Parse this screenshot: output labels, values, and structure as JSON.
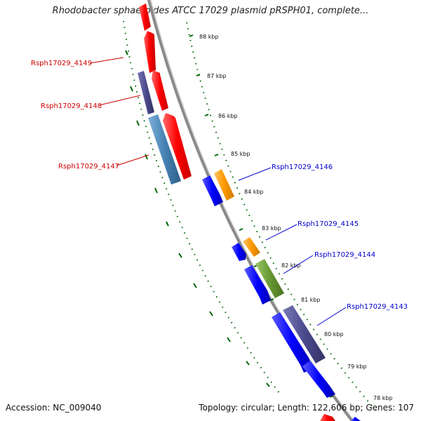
{
  "title": "Rhodobacter sphaeroides ATCC 17029 plasmid pRSPH01, complete...",
  "footer": {
    "accession": "Accession: NC_009040",
    "topology": "Topology: circular; Length: 122,606 bp; Genes: 107"
  },
  "colors": {
    "backbone": "#8a8a8a",
    "ticks": "#006600",
    "red": "#ff0000",
    "blue": "#0000ff",
    "orange": "#ff9900",
    "olive": "#669933",
    "purple": "#4b4a8c",
    "steel": "#4682b4",
    "label_red": "#cc0000",
    "label_blue": "#0000cc"
  },
  "scale_labels": [
    {
      "text": "88 kbp"
    },
    {
      "text": "87 kbp"
    },
    {
      "text": "86 kbp"
    },
    {
      "text": "85 kbp"
    },
    {
      "text": "84 kbp"
    },
    {
      "text": "83 kbp"
    },
    {
      "text": "82 kbp"
    },
    {
      "text": "81 kbp"
    },
    {
      "text": "80 kbp"
    },
    {
      "text": "79 kbp"
    },
    {
      "text": "78 kbp"
    }
  ],
  "gene_labels": [
    {
      "text": "Rsph17029_4149",
      "color": "#cc0000"
    },
    {
      "text": "Rsph17029_4148",
      "color": "#cc0000"
    },
    {
      "text": "Rsph17029_4147",
      "color": "#cc0000"
    },
    {
      "text": "Rsph17029_4146",
      "color": "#0000cc"
    },
    {
      "text": "Rsph17029_4145",
      "color": "#0000cc"
    },
    {
      "text": "Rsph17029_4144",
      "color": "#0000cc"
    },
    {
      "text": "Rsph17029_4143",
      "color": "#0000cc"
    }
  ]
}
